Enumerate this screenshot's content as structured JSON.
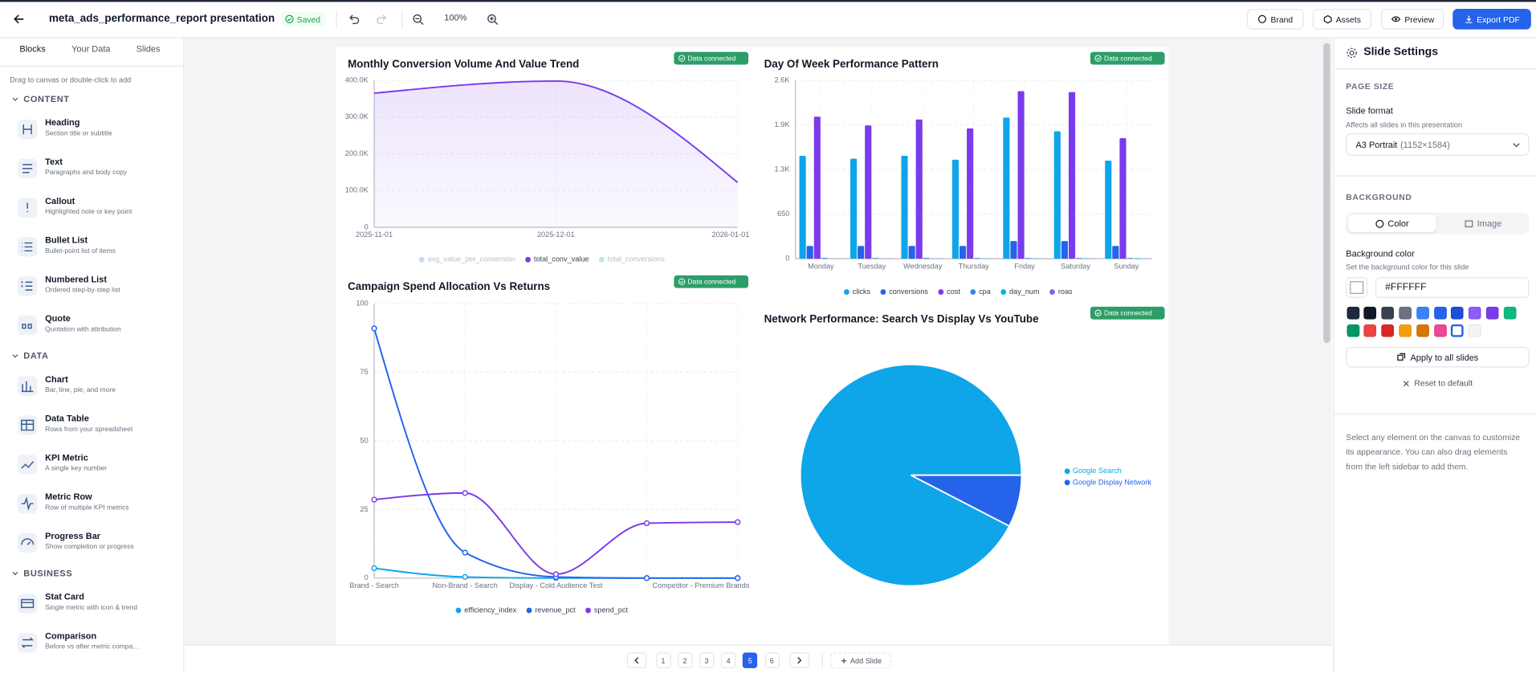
{
  "toolbar": {
    "title": "meta_ads_performance_report presentation",
    "status": "Saved",
    "zoom": "100%",
    "buttons": [
      "Brand",
      "Assets",
      "Preview",
      "Export PDF"
    ]
  },
  "sidebar": {
    "tabs": [
      "Blocks",
      "Your Data",
      "Slides"
    ],
    "hint": "Drag to canvas or double-click to add",
    "sections": [
      {
        "title": "CONTENT",
        "items": [
          {
            "name": "Heading",
            "description": "Section title or subtitle"
          },
          {
            "name": "Text",
            "description": "Paragraphs and body copy"
          },
          {
            "name": "Callout",
            "description": "Highlighted note or key point"
          },
          {
            "name": "Bullet List",
            "description": "Bullet-point list of items"
          },
          {
            "name": "Numbered List",
            "description": "Ordered step-by-step list"
          },
          {
            "name": "Quote",
            "description": "Quotation with attribution"
          }
        ]
      },
      {
        "title": "DATA",
        "items": [
          {
            "name": "Chart",
            "description": "Bar, line, pie, and more"
          },
          {
            "name": "Data Table",
            "description": "Rows from your spreadsheet"
          },
          {
            "name": "KPI Metric",
            "description": "A single key number"
          },
          {
            "name": "Metric Row",
            "description": "Row of multiple KPI metrics"
          },
          {
            "name": "Progress Bar",
            "description": "Show completion or progress"
          }
        ]
      },
      {
        "title": "BUSINESS",
        "items": [
          {
            "name": "Stat Card",
            "description": "Single metric with icon & trend"
          },
          {
            "name": "Comparison",
            "description": "Before vs after metric compa..."
          }
        ]
      }
    ]
  },
  "chart_data": [
    {
      "type": "area",
      "title": "Monthly Conversion Volume And Value Trend",
      "status": "Data connected",
      "categories": [
        "2025-11-01",
        "2025-12-01",
        "2026-01-01"
      ],
      "series": [
        {
          "name": "avg_value_per_conversion",
          "color": "#3b82f6",
          "hidden": true,
          "values": [
            null,
            null,
            null
          ]
        },
        {
          "name": "total_conv_value",
          "color": "#7c3aed",
          "values": [
            365000,
            398000,
            122000
          ]
        },
        {
          "name": "total_conversions",
          "color": "#10b981",
          "hidden": true,
          "values": [
            null,
            null,
            null
          ]
        }
      ],
      "ylim": [
        0,
        400000
      ],
      "yticks": [
        0,
        {
          "value": 100000,
          "label": "100.0K"
        },
        {
          "value": 200000,
          "label": "200.0K"
        },
        {
          "value": 300000,
          "label": "300.0K"
        },
        {
          "value": 400000,
          "label": "400.0K"
        }
      ],
      "grid": true
    },
    {
      "type": "bar",
      "title": "Day Of Week Performance Pattern",
      "status": "Data connected",
      "categories": [
        "Monday",
        "Tuesday",
        "Wednesday",
        "Thursday",
        "Friday",
        "Saturday",
        "Sunday"
      ],
      "series": [
        {
          "name": "clicks",
          "color": "#0ea5e9",
          "values": [
            1500,
            1457,
            1500,
            1443,
            2057,
            1857,
            1429
          ]
        },
        {
          "name": "conversions",
          "color": "#2563eb",
          "values": [
            186,
            186,
            186,
            186,
            257,
            257,
            186
          ]
        },
        {
          "name": "cost",
          "color": "#7c3aed",
          "values": [
            2071,
            1943,
            2029,
            1900,
            2443,
            2429,
            1757
          ]
        },
        {
          "name": "cpa",
          "color": "#3b82f6",
          "values": [
            11,
            10,
            11,
            10,
            9,
            9,
            9
          ]
        },
        {
          "name": "day_num",
          "color": "#06b6d4",
          "values": [
            1,
            2,
            3,
            4,
            5,
            6,
            7
          ]
        },
        {
          "name": "roas",
          "color": "#8b5cf6",
          "values": [
            3,
            3,
            3,
            3,
            3,
            3,
            3
          ]
        }
      ],
      "ylim": [
        0,
        2600
      ],
      "yticks": [
        0,
        650,
        {
          "value": 1300,
          "label": "1.3K"
        },
        {
          "value": 1950,
          "label": "1.9K"
        },
        {
          "value": 2600,
          "label": "2.6K"
        }
      ],
      "grid": true
    },
    {
      "type": "line",
      "title": "Campaign Spend Allocation Vs Returns",
      "status": "Data connected",
      "categories": [
        "Brand - Search",
        "Non-Brand - Search",
        "Display - Cold Audience Test",
        null,
        "Competitor - Premium Brands"
      ],
      "series": [
        {
          "name": "efficiency_index",
          "color": "#0ea5e9",
          "values": [
            3.6,
            0.4,
            0,
            0,
            0
          ]
        },
        {
          "name": "revenue_pct",
          "color": "#2563eb",
          "values": [
            91,
            9.3,
            0.4,
            0,
            0
          ]
        },
        {
          "name": "spend_pct",
          "color": "#7c3aed",
          "values": [
            28.6,
            31,
            1.4,
            20,
            20.4
          ]
        }
      ],
      "ylim": [
        0,
        100
      ],
      "yticks": [
        0,
        25,
        50,
        75,
        100
      ],
      "grid": true,
      "markers": true
    },
    {
      "type": "pie",
      "title": "Network Performance: Search Vs Display Vs YouTube",
      "status": "Data connected",
      "categories": [
        "Google Search",
        "Google Display Network"
      ],
      "values": [
        92.4,
        7.6
      ],
      "colors": [
        "#0ea5e9",
        "#2563eb"
      ]
    }
  ],
  "pagination": {
    "pages": [
      1,
      2,
      3,
      4,
      5,
      6
    ],
    "current": 5,
    "add": "Add Slide"
  },
  "settings_panel": {
    "title": "Slide Settings",
    "page_size": {
      "heading": "PAGE SIZE",
      "label": "Slide format",
      "hint": "Affects all slides in this presentation",
      "format": "A3 Portrait",
      "dimensions": "(1152×1584)"
    },
    "background": {
      "heading": "BACKGROUND",
      "tabs": [
        "Color",
        "Image"
      ],
      "label": "Background color",
      "hint": "Set the background color for this slide",
      "value": "#FFFFFF",
      "swatches": [
        "#1e293b",
        "#111827",
        "#374151",
        "#6b7280",
        "#3b82f6",
        "#2563eb",
        "#1d4ed8",
        "#8b5cf6",
        "#7c3aed",
        "#10b981",
        "#059669",
        "#ef4444",
        "#dc2626",
        "#f59e0b",
        "#d97706",
        "#ec4899",
        "#FFFFFF",
        "#f3f4f6"
      ],
      "apply": "Apply to all slides",
      "reset": "Reset to default"
    },
    "help": "Select any element on the canvas to customize its appearance. You can also drag elements from the left sidebar to add them."
  }
}
